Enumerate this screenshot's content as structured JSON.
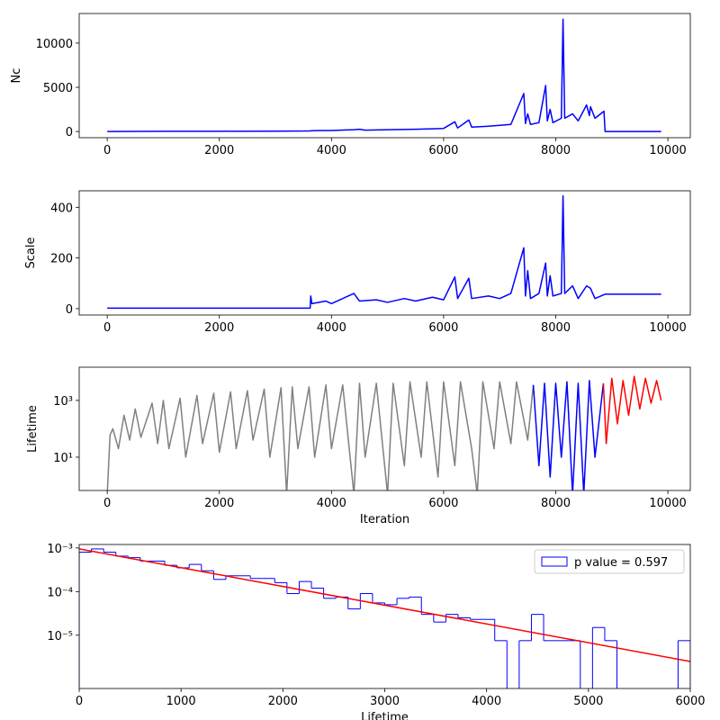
{
  "chart_data": [
    {
      "type": "line",
      "ylabel": "Nc",
      "xlim": [
        -500,
        10400
      ],
      "xticks": [
        0,
        2000,
        4000,
        6000,
        8000,
        10000
      ],
      "ylim": [
        -700,
        13350
      ],
      "yticks": [
        0,
        5000,
        10000
      ],
      "series": [
        {
          "color": "#0000ff",
          "x": [
            0,
            1000,
            2000,
            3000,
            3600,
            3700,
            4000,
            4400,
            4500,
            4600,
            5000,
            5500,
            5800,
            6000,
            6200,
            6250,
            6450,
            6500,
            6800,
            7000,
            7200,
            7430,
            7460,
            7500,
            7550,
            7700,
            7820,
            7850,
            7900,
            7950,
            8100,
            8130,
            8160,
            8300,
            8400,
            8550,
            8600,
            8620,
            8700,
            8800,
            8860,
            8880,
            9880
          ],
          "values": [
            0,
            20,
            30,
            40,
            60,
            100,
            120,
            200,
            250,
            150,
            200,
            250,
            300,
            350,
            1100,
            400,
            1300,
            500,
            600,
            700,
            800,
            4300,
            900,
            2000,
            800,
            1000,
            5200,
            1200,
            2500,
            1000,
            1500,
            12700,
            1500,
            2000,
            1200,
            3000,
            1800,
            2800,
            1500,
            2000,
            2300,
            0,
            0
          ]
        }
      ]
    },
    {
      "type": "line",
      "ylabel": "Scale",
      "xlim": [
        -500,
        10400
      ],
      "xticks": [
        0,
        2000,
        4000,
        6000,
        8000,
        10000
      ],
      "ylim": [
        -25,
        465
      ],
      "yticks": [
        0,
        200,
        400
      ],
      "series": [
        {
          "color": "#0000ff",
          "x": [
            0,
            3620,
            3630,
            3650,
            3900,
            4000,
            4400,
            4500,
            4800,
            5000,
            5300,
            5500,
            5800,
            6000,
            6200,
            6250,
            6450,
            6500,
            6800,
            7000,
            7200,
            7430,
            7460,
            7500,
            7550,
            7700,
            7820,
            7850,
            7900,
            7950,
            8100,
            8130,
            8160,
            8300,
            8400,
            8550,
            8620,
            8700,
            8860,
            8880,
            9880
          ],
          "values": [
            2,
            2,
            50,
            20,
            30,
            20,
            60,
            30,
            35,
            25,
            40,
            30,
            45,
            35,
            125,
            40,
            120,
            40,
            50,
            40,
            60,
            240,
            50,
            150,
            40,
            60,
            180,
            50,
            130,
            50,
            60,
            445,
            60,
            90,
            40,
            90,
            80,
            40,
            55,
            57,
            57
          ]
        }
      ]
    },
    {
      "type": "line",
      "ylabel": "Lifetime",
      "xlabel": "Iteration",
      "yscale": "log",
      "xlim": [
        -500,
        10400
      ],
      "xticks": [
        0,
        2000,
        4000,
        6000,
        8000,
        10000
      ],
      "ylim": [
        0.67,
        14800
      ],
      "yticks": [
        {
          "value": 10,
          "label": "10¹"
        },
        {
          "value": 1000,
          "label": "10³"
        }
      ],
      "series": [
        {
          "color": "#808080",
          "x": [
            0,
            50,
            100,
            200,
            300,
            400,
            500,
            600,
            800,
            900,
            1000,
            1100,
            1300,
            1400,
            1600,
            1700,
            1900,
            2000,
            2200,
            2300,
            2500,
            2600,
            2800,
            2900,
            3100,
            3200,
            3300,
            3400,
            3600,
            3700,
            3900,
            4000,
            4200,
            4400,
            4500,
            4600,
            4800,
            5000,
            5100,
            5300,
            5400,
            5600,
            5700,
            5900,
            6000,
            6200,
            6300,
            6500,
            6600,
            6700,
            6900,
            7000,
            7200,
            7300,
            7500,
            7600
          ],
          "values": [
            0.5,
            60,
            100,
            20,
            300,
            40,
            500,
            50,
            800,
            30,
            1000,
            20,
            1200,
            10,
            1500,
            30,
            1800,
            15,
            2000,
            20,
            2200,
            40,
            2500,
            10,
            2800,
            0.5,
            3000,
            20,
            3000,
            10,
            3500,
            20,
            3500,
            0.5,
            4000,
            10,
            4000,
            0.5,
            4000,
            5,
            4500,
            10,
            4500,
            2,
            4500,
            5,
            4500,
            20,
            0.5,
            4500,
            20,
            4500,
            30,
            4500,
            40,
            3500
          ]
        },
        {
          "color": "#0000ff",
          "x": [
            7600,
            7700,
            7800,
            7900,
            8000,
            8100,
            8200,
            8300,
            8400,
            8500,
            8600,
            8700,
            8850
          ],
          "values": [
            3500,
            5,
            4000,
            2,
            4000,
            10,
            4500,
            0.5,
            4000,
            0.5,
            5000,
            10,
            4000
          ]
        },
        {
          "color": "#ff0000",
          "x": [
            8850,
            8900,
            9000,
            9100,
            9200,
            9300,
            9400,
            9500,
            9600,
            9700,
            9800,
            9880
          ],
          "values": [
            4000,
            30,
            6000,
            150,
            5000,
            300,
            7000,
            500,
            6000,
            800,
            5000,
            1000
          ]
        }
      ]
    },
    {
      "type": "histogram",
      "xlabel": "Lifetime",
      "yscale": "log",
      "xlim": [
        0,
        6000
      ],
      "xticks": [
        0,
        1000,
        2000,
        3000,
        4000,
        5000,
        6000
      ],
      "ylim": [
        6e-07,
        0.0012
      ],
      "yticks": [
        {
          "value": 1e-05,
          "label": "10⁻⁵"
        },
        {
          "value": 0.0001,
          "label": "10⁻⁴"
        },
        {
          "value": 0.001,
          "label": "10⁻³"
        }
      ],
      "name": "p value = 0.597",
      "color": "#0000ff",
      "legend": "upper right",
      "bins": [
        0,
        120,
        240,
        360,
        480,
        600,
        720,
        840,
        960,
        1080,
        1200,
        1320,
        1440,
        1560,
        1680,
        1800,
        1920,
        2040,
        2160,
        2280,
        2400,
        2520,
        2640,
        2760,
        2880,
        3000,
        3120,
        3240,
        3360,
        3480,
        3600,
        3720,
        3840,
        3960,
        4080,
        4200,
        4320,
        4440,
        4560,
        4680,
        4800,
        4920,
        5040,
        5160,
        5280,
        5400,
        5520,
        5640,
        5760,
        5880,
        6000
      ],
      "values": [
        0.0008,
        0.00095,
        0.0008,
        0.00065,
        0.0006,
        0.0005,
        0.0005,
        0.0004,
        0.00035,
        0.00042,
        0.0003,
        0.00019,
        0.00023,
        0.00023,
        0.0002,
        0.0002,
        0.00016,
        9e-05,
        0.00017,
        0.00012,
        7e-05,
        7.5e-05,
        4e-05,
        9e-05,
        5.5e-05,
        5e-05,
        7e-05,
        7.5e-05,
        3e-05,
        2e-05,
        3e-05,
        2.5e-05,
        2.3e-05,
        2.3e-05,
        7.5e-06,
        0,
        7.5e-06,
        3e-05,
        7.5e-06,
        7.5e-06,
        7.5e-06,
        0,
        1.5e-05,
        7.5e-06,
        0,
        0,
        0,
        0,
        0,
        7.5e-06
      ],
      "fit": {
        "color": "#ff0000",
        "x": [
          0,
          6000
        ],
        "values": [
          0.00095,
          2.5e-06
        ]
      }
    }
  ]
}
